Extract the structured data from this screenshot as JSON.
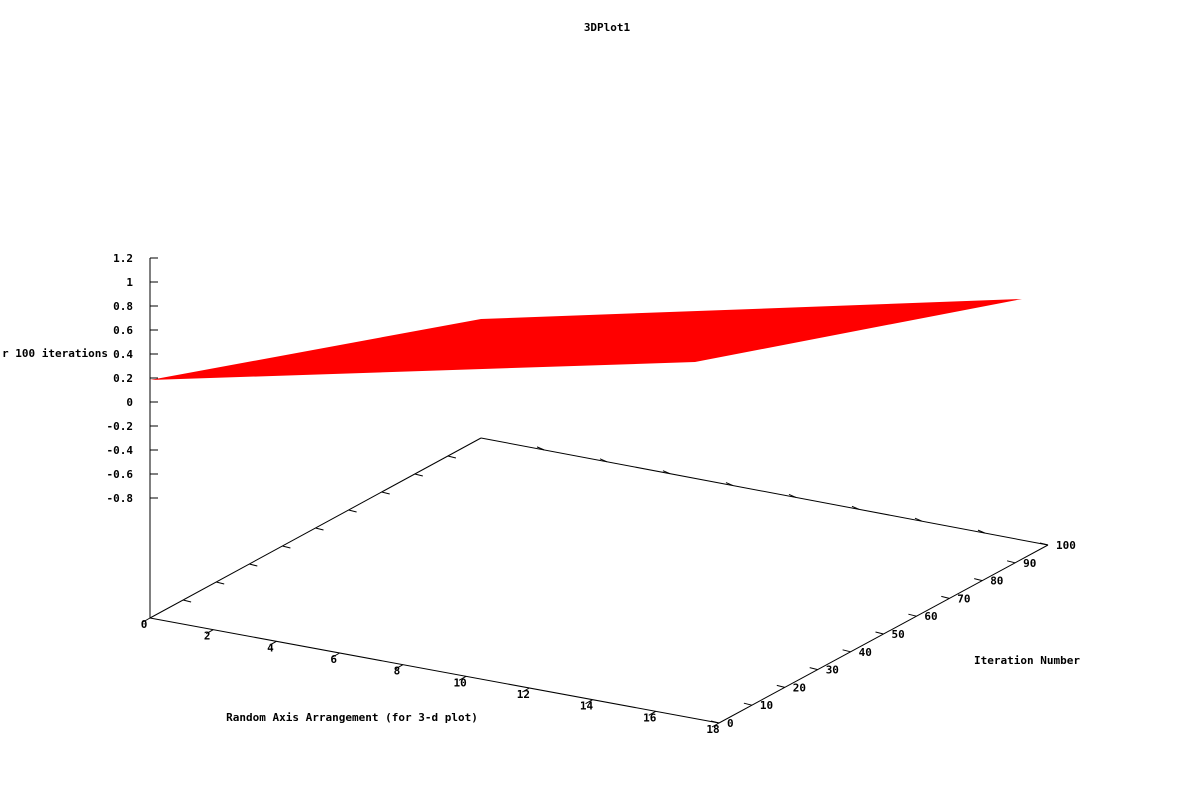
{
  "chart_data": {
    "type": "surface3d",
    "title": "3DPlot1",
    "xlabel": "Random Axis Arrangement (for 3-d plot)",
    "ylabel": "Iteration Number",
    "zlabel": "r 100 iterations",
    "xlim": [
      0,
      18
    ],
    "ylim": [
      0,
      100
    ],
    "zlim": [
      -0.8,
      1.2
    ],
    "x_ticks": [
      "0",
      "2",
      "4",
      "6",
      "8",
      "10",
      "12",
      "14",
      "16",
      "18"
    ],
    "y_ticks": [
      "0",
      "10",
      "20",
      "30",
      "40",
      "50",
      "60",
      "70",
      "80",
      "90",
      "100"
    ],
    "z_ticks": [
      "1.2",
      "1",
      "0.8",
      "0.6",
      "0.4",
      "0.2",
      "0",
      "-0.2",
      "-0.4",
      "-0.6",
      "-0.8"
    ],
    "surface_color": "#ff0000",
    "surface": {
      "x": [
        0,
        18
      ],
      "y": [
        0,
        100
      ],
      "z": [
        [
          0.2,
          0.7
        ],
        [
          0.25,
          0.85
        ]
      ]
    }
  }
}
